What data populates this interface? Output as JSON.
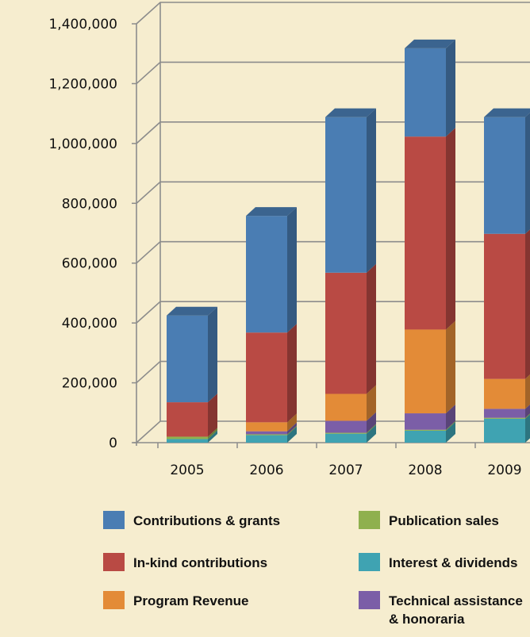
{
  "chart_data": {
    "type": "bar",
    "stacked": true,
    "three_d": true,
    "categories": [
      "2005",
      "2006",
      "2007",
      "2008",
      "2009"
    ],
    "ylim": [
      0,
      1400000
    ],
    "yticks": [
      "0",
      "200,000",
      "400,000",
      "600,000",
      "800,000",
      "1,000,000",
      "1,200,000",
      "1,400,000"
    ],
    "grid": true,
    "legend_position": "bottom",
    "series": [
      {
        "name": "Interest & dividends",
        "color": "#3fa3b2",
        "values": [
          12000,
          25000,
          30000,
          40000,
          80000
        ]
      },
      {
        "name": "Publication sales",
        "color": "#8fb04e",
        "values": [
          8000,
          3000,
          3000,
          3000,
          3000
        ]
      },
      {
        "name": "Technical assistance & honoraria",
        "color": "#7b5ea7",
        "values": [
          0,
          10000,
          40000,
          55000,
          30000
        ]
      },
      {
        "name": "Program Revenue",
        "color": "#e38b37",
        "values": [
          0,
          30000,
          90000,
          280000,
          100000
        ]
      },
      {
        "name": "In-kind contributions",
        "color": "#b94a44",
        "values": [
          115000,
          300000,
          405000,
          645000,
          485000
        ]
      },
      {
        "name": "Contributions & grants",
        "color": "#4a7db3",
        "values": [
          290000,
          390000,
          520000,
          295000,
          390000
        ]
      }
    ],
    "legend": [
      {
        "label": "Contributions & grants",
        "color": "#4a7db3"
      },
      {
        "label": "Publication sales",
        "color": "#8fb04e"
      },
      {
        "label": "In-kind contributions",
        "color": "#b94a44"
      },
      {
        "label": "Interest & dividends",
        "color": "#3fa3b2"
      },
      {
        "label": "Program Revenue",
        "color": "#e38b37"
      },
      {
        "label": "Technical assistance\n& honoraria",
        "color": "#7b5ea7"
      }
    ]
  }
}
